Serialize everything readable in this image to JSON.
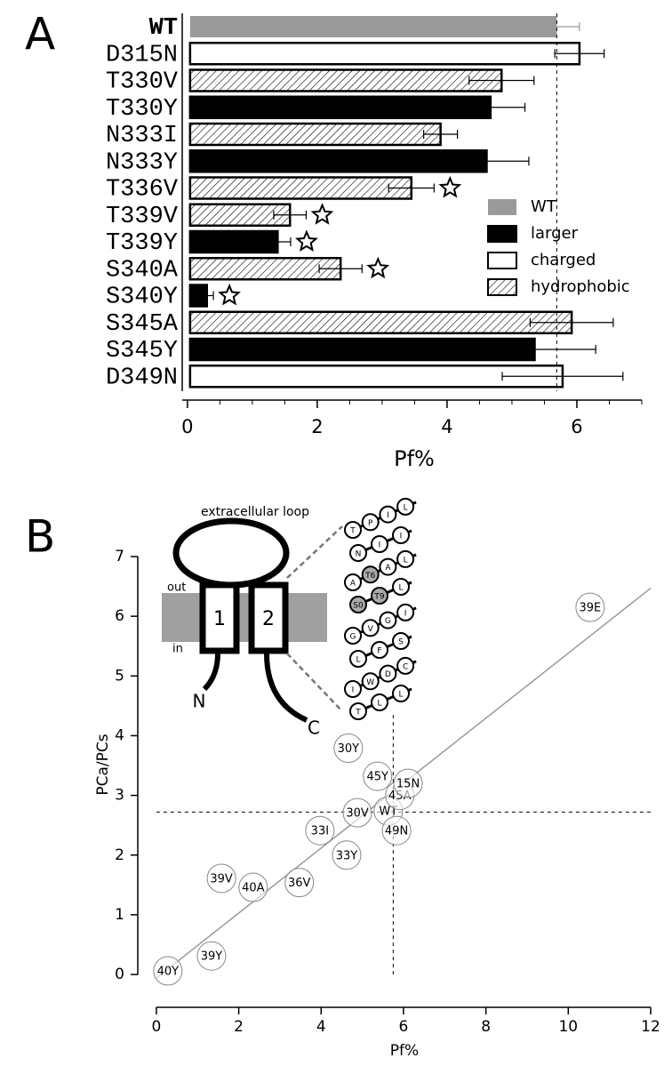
{
  "chart_data": [
    {
      "type": "hbar",
      "panel": "A",
      "categories": [
        "WT",
        "D315N",
        "T330V",
        "T330Y",
        "N333I",
        "N333Y",
        "T336V",
        "T339V",
        "T339Y",
        "S340A",
        "S340Y",
        "S345A",
        "S345Y",
        "D349N"
      ],
      "series": [
        {
          "name": "WT",
          "color": "#9a9a9a",
          "hatch": false,
          "values": [
            5.69,
            null,
            null,
            null,
            null,
            null,
            null,
            null,
            null,
            null,
            null,
            null,
            null,
            null
          ],
          "errors": [
            0.35,
            null,
            null,
            null,
            null,
            null,
            null,
            null,
            null,
            null,
            null,
            null,
            null,
            null
          ]
        },
        {
          "name": "larger",
          "color": "#000000",
          "hatch": false,
          "values": [
            null,
            null,
            null,
            4.67,
            null,
            4.61,
            null,
            null,
            1.39,
            null,
            0.3,
            null,
            5.35,
            null
          ],
          "errors": [
            null,
            null,
            null,
            0.53,
            null,
            0.65,
            null,
            null,
            0.2,
            null,
            0.1,
            null,
            0.94,
            null
          ]
        },
        {
          "name": "charged",
          "color": "#ffffff",
          "hatch": false,
          "values": [
            null,
            6.04,
            null,
            null,
            null,
            null,
            null,
            null,
            null,
            null,
            null,
            null,
            null,
            5.78
          ],
          "errors": [
            null,
            0.38,
            null,
            null,
            null,
            null,
            null,
            null,
            null,
            null,
            null,
            null,
            null,
            0.93
          ]
        },
        {
          "name": "hydrophobic",
          "color": "#ffffff",
          "hatch": true,
          "values": [
            null,
            null,
            4.84,
            null,
            3.9,
            null,
            3.45,
            1.58,
            null,
            2.36,
            null,
            5.92,
            null,
            null
          ],
          "errors": [
            null,
            null,
            0.5,
            null,
            0.26,
            null,
            0.35,
            0.25,
            null,
            0.33,
            null,
            0.64,
            null,
            null
          ]
        }
      ],
      "significant": [
        false,
        false,
        false,
        false,
        false,
        false,
        true,
        true,
        true,
        true,
        true,
        false,
        false,
        false
      ],
      "ref_line": 5.69,
      "xlabel": "Pf%",
      "xlim": [
        -0.08,
        7.0
      ],
      "xticks": [
        0,
        2,
        4,
        6
      ],
      "legend": "center-right"
    },
    {
      "type": "scatter",
      "panel": "B",
      "labels": [
        "40Y",
        "39Y",
        "39V",
        "40A",
        "36V",
        "33I",
        "33Y",
        "30V",
        "30Y",
        "45Y",
        "WT",
        "49N",
        "45A",
        "15N",
        "39E"
      ],
      "x": [
        0.28,
        1.34,
        1.58,
        2.35,
        3.47,
        3.97,
        4.62,
        4.88,
        4.66,
        5.37,
        5.63,
        5.83,
        5.91,
        6.11,
        10.53
      ],
      "y": [
        0.06,
        0.31,
        1.61,
        1.46,
        1.54,
        2.41,
        2.0,
        2.71,
        3.79,
        3.32,
        2.74,
        2.41,
        3.0,
        3.2,
        6.15
      ],
      "fit_line": {
        "x": [
          0,
          12
        ],
        "y": [
          -0.06,
          6.47
        ]
      },
      "hline": 2.72,
      "vline": {
        "x": 5.75,
        "ymax": 4.4
      },
      "xlabel": "Pf%",
      "ylabel": "PCa/PCs",
      "xlim": [
        -0.3,
        12
      ],
      "ylim": [
        -0.55,
        7
      ],
      "xticks": [
        0,
        2,
        4,
        6,
        8,
        10,
        12
      ],
      "yticks": [
        0,
        1,
        2,
        3,
        4,
        5,
        6,
        7
      ],
      "inset": {
        "loop_label": "extracellular loop",
        "out_label": "out",
        "in_label": "in",
        "helix_labels": [
          "1",
          "2"
        ],
        "n_label": "N",
        "c_label": "C",
        "residues": [
          [
            "T",
            "P",
            "I",
            "L"
          ],
          [
            "N",
            "I",
            "I"
          ],
          [
            "A",
            "T6",
            "A",
            "L"
          ],
          [
            "S0",
            "T9",
            "L"
          ],
          [
            "G",
            "V",
            "G",
            "I"
          ],
          [
            "L",
            "F",
            "S"
          ],
          [
            "I",
            "W",
            "D",
            "C"
          ],
          [
            "T",
            "L",
            "L"
          ]
        ],
        "highlighted": [
          "T6",
          "T9",
          "S0"
        ]
      }
    }
  ]
}
